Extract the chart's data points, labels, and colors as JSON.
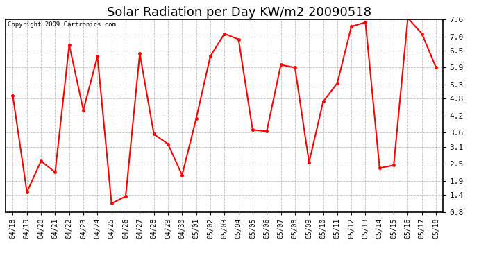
{
  "title": "Solar Radiation per Day KW/m2 20090518",
  "copyright": "Copyright 2009 Cartronics.com",
  "labels": [
    "04/18",
    "04/19",
    "04/20",
    "04/21",
    "04/22",
    "04/23",
    "04/24",
    "04/25",
    "04/26",
    "04/27",
    "04/28",
    "04/29",
    "04/30",
    "05/01",
    "05/02",
    "05/03",
    "05/04",
    "05/05",
    "05/06",
    "05/07",
    "05/08",
    "05/09",
    "05/10",
    "05/11",
    "05/12",
    "05/13",
    "05/14",
    "05/15",
    "05/16",
    "05/17",
    "05/18"
  ],
  "values": [
    4.9,
    1.5,
    2.6,
    2.2,
    6.7,
    4.4,
    6.3,
    1.1,
    1.35,
    6.4,
    3.55,
    3.2,
    2.1,
    4.1,
    6.3,
    7.1,
    6.9,
    3.7,
    3.65,
    6.0,
    5.9,
    2.55,
    4.7,
    5.35,
    7.35,
    7.5,
    2.35,
    2.45,
    7.65,
    7.1,
    5.9
  ],
  "line_color": "#ff0000",
  "marker": "o",
  "marker_size": 3,
  "line_width": 1.5,
  "bg_color": "#ffffff",
  "plot_bg_color": "#ffffff",
  "grid_color": "#aaaaaa",
  "ylim": [
    0.8,
    7.6
  ],
  "yticks": [
    0.8,
    1.4,
    1.9,
    2.5,
    3.1,
    3.6,
    4.2,
    4.8,
    5.3,
    5.9,
    6.5,
    7.0,
    7.6
  ],
  "title_fontsize": 13,
  "tick_fontsize": 7,
  "copyright_fontsize": 6.5
}
